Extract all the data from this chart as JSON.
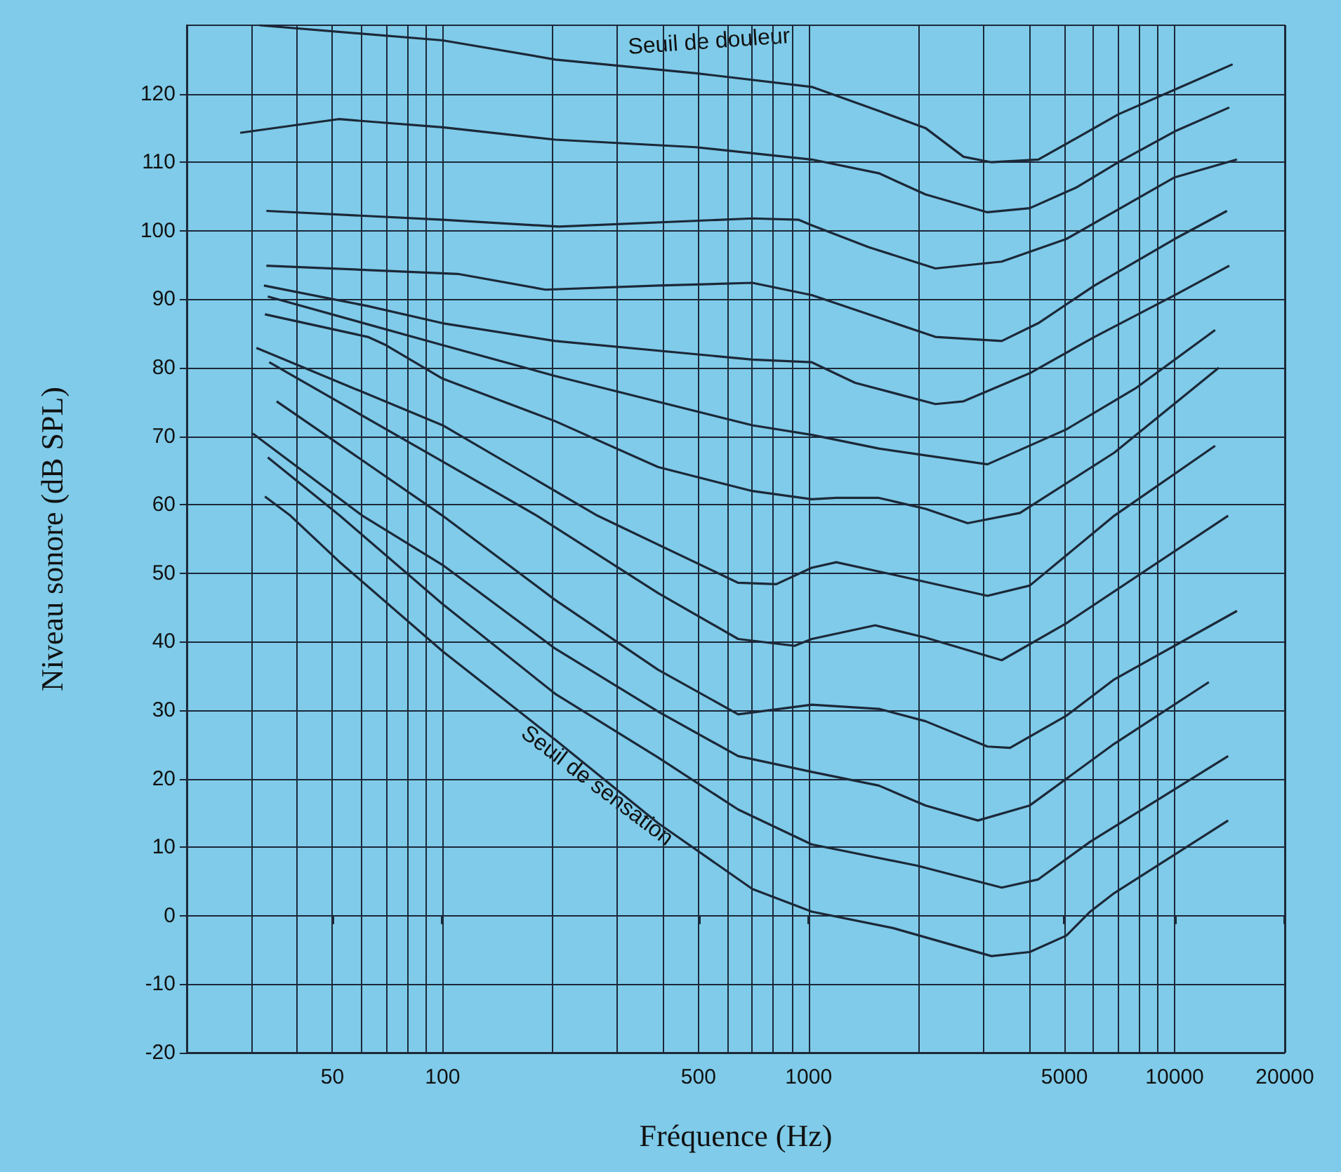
{
  "chart_data": {
    "type": "line",
    "xlabel": "Fréquence (Hz)",
    "ylabel": "Niveau sonore (dB SPL)",
    "log": "x",
    "grid": true,
    "marker": "none",
    "line_style": "solid",
    "xlim": [
      20,
      20000
    ],
    "xticks": [
      {
        "value": 20,
        "label": null
      },
      {
        "value": 30,
        "label": null
      },
      {
        "value": 40,
        "label": null
      },
      50,
      {
        "value": 60,
        "label": null
      },
      {
        "value": 70,
        "label": null
      },
      {
        "value": 80,
        "label": null
      },
      {
        "value": 90,
        "label": null
      },
      100,
      {
        "value": 200,
        "label": null
      },
      {
        "value": 300,
        "label": null
      },
      {
        "value": 400,
        "label": null
      },
      500,
      {
        "value": 600,
        "label": null
      },
      {
        "value": 700,
        "label": null
      },
      {
        "value": 800,
        "label": null
      },
      {
        "value": 900,
        "label": null
      },
      1000,
      {
        "value": 2000,
        "label": null
      },
      {
        "value": 3000,
        "label": null
      },
      {
        "value": 4000,
        "label": null
      },
      5000,
      {
        "value": 6000,
        "label": null
      },
      {
        "value": 7000,
        "label": null
      },
      {
        "value": 8000,
        "label": null
      },
      {
        "value": 9000,
        "label": null
      },
      10000,
      20000
    ],
    "ylim": [
      -20,
      130
    ],
    "yticks": [
      -20,
      -10,
      0,
      10,
      20,
      30,
      40,
      50,
      60,
      70,
      80,
      90,
      100,
      110,
      120
    ],
    "series": [
      {
        "color": "#1c2838",
        "x": [
          31.6,
          100,
          203,
          492,
          1020,
          1555,
          2085,
          2650,
          3160,
          4240,
          5380,
          7020,
          10000,
          14400
        ],
        "values": [
          130,
          127.8,
          125,
          123,
          121,
          117.5,
          115,
          110.8,
          110,
          110.4,
          113.5,
          117,
          120.6,
          124.3
        ]
      },
      {
        "color": "#1c2838",
        "x": [
          28,
          52,
          100,
          203,
          492,
          1020,
          1555,
          2085,
          3080,
          4020,
          5380,
          7020,
          10000,
          14100
        ],
        "values": [
          114.3,
          116.3,
          115.1,
          113.3,
          112.2,
          110.4,
          108.4,
          105.3,
          102.7,
          103.3,
          106.3,
          110,
          114.5,
          118
        ]
      },
      {
        "color": "#1c2838",
        "x": [
          33,
          100,
          208,
          702,
          940,
          1020,
          1460,
          2220,
          3370,
          5060,
          7670,
          10000,
          14800
        ],
        "values": [
          102.9,
          101.6,
          100.6,
          101.8,
          101.6,
          100.8,
          97.6,
          94.5,
          95.5,
          98.8,
          104.3,
          107.8,
          110.4
        ]
      },
      {
        "color": "#1c2838",
        "x": [
          33,
          110,
          191,
          388,
          702,
          1020,
          1555,
          2220,
          3370,
          4240,
          6040,
          10000,
          13900
        ],
        "values": [
          94.9,
          93.7,
          91.4,
          92,
          92.4,
          90.6,
          87.3,
          84.5,
          83.9,
          86.5,
          92,
          98.8,
          102.9
        ]
      },
      {
        "color": "#1c2838",
        "x": [
          32.5,
          62.5,
          100,
          203,
          702,
          1020,
          1340,
          2220,
          2650,
          4020,
          6040,
          10000,
          14100
        ],
        "values": [
          92,
          89,
          86.5,
          83.9,
          81.2,
          80.8,
          77.8,
          74.7,
          75.1,
          79.2,
          84.5,
          90.6,
          94.9
        ]
      },
      {
        "color": "#1c2838",
        "x": [
          33.3,
          100,
          203,
          702,
          1020,
          1555,
          3080,
          5060,
          7870,
          12900
        ],
        "values": [
          90.4,
          83.3,
          78.8,
          71.6,
          70.2,
          68.2,
          65.9,
          71,
          77.1,
          85.5
        ]
      },
      {
        "color": "#1c2838",
        "x": [
          32.7,
          62.5,
          70,
          100,
          203,
          388,
          702,
          1020,
          1190,
          1555,
          2085,
          2720,
          3780,
          6840,
          13200
        ],
        "values": [
          87.8,
          84.5,
          83.3,
          78.4,
          72.2,
          65.5,
          62,
          60.8,
          61,
          61,
          59.4,
          57.3,
          58.8,
          67.6,
          80
        ]
      },
      {
        "color": "#1c2838",
        "x": [
          31,
          100,
          265,
          642,
          816,
          1020,
          1190,
          1700,
          3080,
          4020,
          6840,
          12900
        ],
        "values": [
          82.9,
          71.6,
          58.4,
          48.6,
          48.4,
          50.8,
          51.6,
          49.8,
          46.7,
          48.2,
          58.4,
          68.6
        ]
      },
      {
        "color": "#1c2838",
        "x": [
          33.6,
          100,
          181,
          388,
          642,
          915,
          1020,
          1520,
          2085,
          3370,
          5060,
          14000
        ],
        "values": [
          80.8,
          66.3,
          58.4,
          47.1,
          40.4,
          39.4,
          40.4,
          42.4,
          40.6,
          37.3,
          42.7,
          58.4
        ]
      },
      {
        "color": "#1c2838",
        "x": [
          35.2,
          100,
          203,
          388,
          642,
          1020,
          1555,
          2085,
          3080,
          3550,
          5060,
          6840,
          14800
        ],
        "values": [
          75.1,
          58.4,
          46.1,
          35.9,
          29.4,
          30.8,
          30.2,
          28.4,
          24.7,
          24.5,
          29.2,
          34.5,
          44.5
        ]
      },
      {
        "color": "#1c2838",
        "x": [
          30.3,
          60.4,
          100,
          203,
          388,
          642,
          1020,
          1555,
          2085,
          2900,
          4020,
          6840,
          12400
        ],
        "values": [
          70.4,
          58.4,
          51.2,
          39,
          29.8,
          23.3,
          21,
          19,
          16.1,
          13.9,
          16.1,
          25.1,
          34.1
        ]
      },
      {
        "color": "#1c2838",
        "x": [
          33.3,
          52.4,
          100,
          203,
          388,
          642,
          1020,
          1980,
          3370,
          4240,
          5880,
          14000
        ],
        "values": [
          66.9,
          58.4,
          45.5,
          32.4,
          23.1,
          15.5,
          10.4,
          7.3,
          4.1,
          5.3,
          10.8,
          23.3
        ]
      },
      {
        "color": "#1c2838",
        "x": [
          32.7,
          38.4,
          52.4,
          100,
          203,
          388,
          702,
          1020,
          1700,
          3160,
          4020,
          5060,
          5880,
          6840,
          14000
        ],
        "values": [
          61.2,
          58.4,
          51.6,
          38.6,
          25.7,
          13.5,
          3.9,
          0.6,
          -1.8,
          -5.9,
          -5.3,
          -2.9,
          0.6,
          3.3,
          13.9
        ]
      }
    ],
    "annotations": [
      "Seuil de douleur",
      "Seuil de sensation"
    ]
  }
}
